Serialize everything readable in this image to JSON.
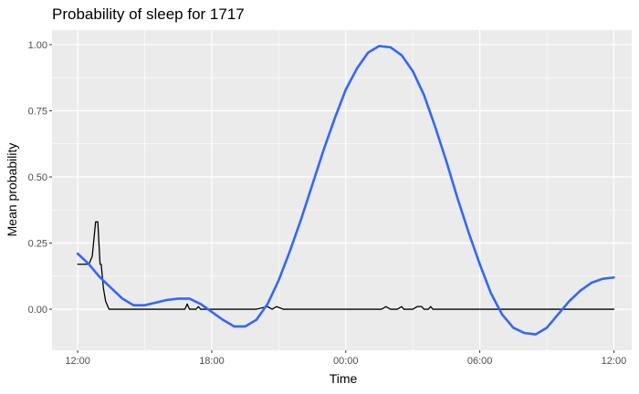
{
  "chart_data": {
    "type": "line",
    "title": "Probability of sleep for 1717",
    "xlabel": "Time",
    "ylabel": "Mean probability",
    "x_unit": "hours since 12:00",
    "xlim": [
      -1.15,
      24.8
    ],
    "ylim": [
      -0.155,
      1.055
    ],
    "x_ticks": [
      {
        "value": 0,
        "label": "12:00"
      },
      {
        "value": 6,
        "label": "18:00"
      },
      {
        "value": 12,
        "label": "00:00"
      },
      {
        "value": 18,
        "label": "06:00"
      },
      {
        "value": 24,
        "label": "12:00"
      }
    ],
    "y_ticks": [
      {
        "value": 0.0,
        "label": "0.00"
      },
      {
        "value": 0.25,
        "label": "0.25"
      },
      {
        "value": 0.5,
        "label": "0.50"
      },
      {
        "value": 0.75,
        "label": "0.75"
      },
      {
        "value": 1.0,
        "label": "1.00"
      }
    ],
    "grid": true,
    "legend": "none",
    "series": [
      {
        "role": "observed",
        "color": "#000000",
        "x": [
          0,
          0.5,
          0.65,
          0.8,
          0.9,
          1.0,
          1.05,
          1.15,
          1.25,
          1.4,
          1.6,
          2.0,
          3.0,
          4.0,
          4.8,
          4.9,
          5.0,
          5.3,
          5.4,
          5.5,
          6.0,
          7.0,
          8.0,
          8.5,
          8.7,
          8.9,
          9.2,
          9.5,
          10.0,
          11.0,
          12.0,
          13.0,
          13.6,
          13.8,
          14.0,
          14.3,
          14.5,
          14.6,
          14.75,
          15.0,
          15.2,
          15.4,
          15.5,
          15.6,
          15.7,
          15.8,
          15.9,
          16.0,
          16.1,
          16.3,
          16.4,
          16.5,
          16.7,
          16.8,
          16.9,
          17.0,
          17.1,
          17.2,
          17.3,
          17.4,
          17.5,
          17.6,
          17.7,
          17.8,
          17.9,
          18.0,
          18.1,
          18.2,
          18.3,
          18.4,
          18.5,
          18.6,
          18.7,
          18.8,
          18.9,
          19.0,
          19.1,
          19.2,
          19.3,
          19.4,
          19.5,
          19.6,
          19.7,
          19.8,
          19.9,
          20.0,
          20.1,
          20.2,
          20.3,
          20.4,
          20.5,
          20.6,
          20.8,
          21.0,
          21.2,
          21.5,
          21.8,
          22.0,
          22.2,
          22.4,
          22.6,
          22.8,
          23.0,
          23.5,
          23.6,
          23.8,
          24.0
        ],
        "y": [
          0.17,
          0.17,
          0.2,
          0.33,
          0.33,
          0.17,
          0.17,
          0.08,
          0.03,
          0.0,
          0.0,
          0.0,
          0.0,
          0.0,
          0.0,
          0.02,
          0.0,
          0.0,
          0.01,
          0.0,
          0.0,
          0.0,
          0.0,
          0.01,
          0.0,
          0.01,
          0.0,
          0.0,
          0.0,
          0.0,
          0.0,
          0.0,
          0.0,
          0.01,
          0.0,
          0.0,
          0.01,
          0.0,
          0.0,
          0.0,
          0.01,
          0.01,
          0.0,
          0.0,
          0.0,
          0.01,
          0.0,
          0.0,
          0.0,
          0.0,
          0.0,
          0.0,
          0.0,
          0.0,
          0.0,
          0.0,
          0.0,
          0.0,
          0.0,
          0.0,
          0.0,
          0.0,
          0.0,
          0.0,
          0.0,
          0.0,
          0.0,
          0.0,
          0.0,
          0.0,
          0.0,
          0.0,
          0.0,
          0.0,
          0.0,
          0.0,
          0.0,
          0.0,
          0.0,
          0.0,
          0.0,
          0.0,
          0.0,
          0.0,
          0.0,
          0.0,
          0.0,
          0.0,
          0.0,
          0.0,
          0.0,
          0.0,
          0.0,
          0.0,
          0.0,
          0.0,
          0.0,
          0.0,
          0.0,
          0.0,
          0.0,
          0.0,
          0.0,
          0.0,
          0.0,
          0.0,
          0.0
        ]
      },
      {
        "role": "smooth",
        "color": "#3366ff",
        "x": [
          0,
          0.5,
          1,
          1.5,
          2,
          2.5,
          3,
          3.5,
          4,
          4.5,
          5,
          5.5,
          6,
          6.5,
          7,
          7.5,
          8,
          8.5,
          9,
          9.5,
          10,
          10.5,
          11,
          11.5,
          12,
          12.5,
          13,
          13.5,
          14,
          14.5,
          15,
          15.5,
          16,
          16.5,
          17,
          17.5,
          18,
          18.5,
          19,
          19.5,
          20,
          20.5,
          21,
          21.5,
          22,
          22.5,
          23,
          23.5,
          24
        ],
        "y": [
          0.21,
          0.17,
          0.12,
          0.08,
          0.04,
          0.015,
          0.015,
          0.025,
          0.035,
          0.04,
          0.04,
          0.02,
          -0.01,
          -0.04,
          -0.065,
          -0.065,
          -0.04,
          0.02,
          0.11,
          0.22,
          0.34,
          0.47,
          0.6,
          0.72,
          0.83,
          0.91,
          0.97,
          0.995,
          0.99,
          0.96,
          0.9,
          0.81,
          0.69,
          0.56,
          0.42,
          0.29,
          0.17,
          0.06,
          -0.02,
          -0.07,
          -0.09,
          -0.095,
          -0.07,
          -0.02,
          0.03,
          0.07,
          0.1,
          0.115,
          0.12
        ]
      }
    ]
  }
}
